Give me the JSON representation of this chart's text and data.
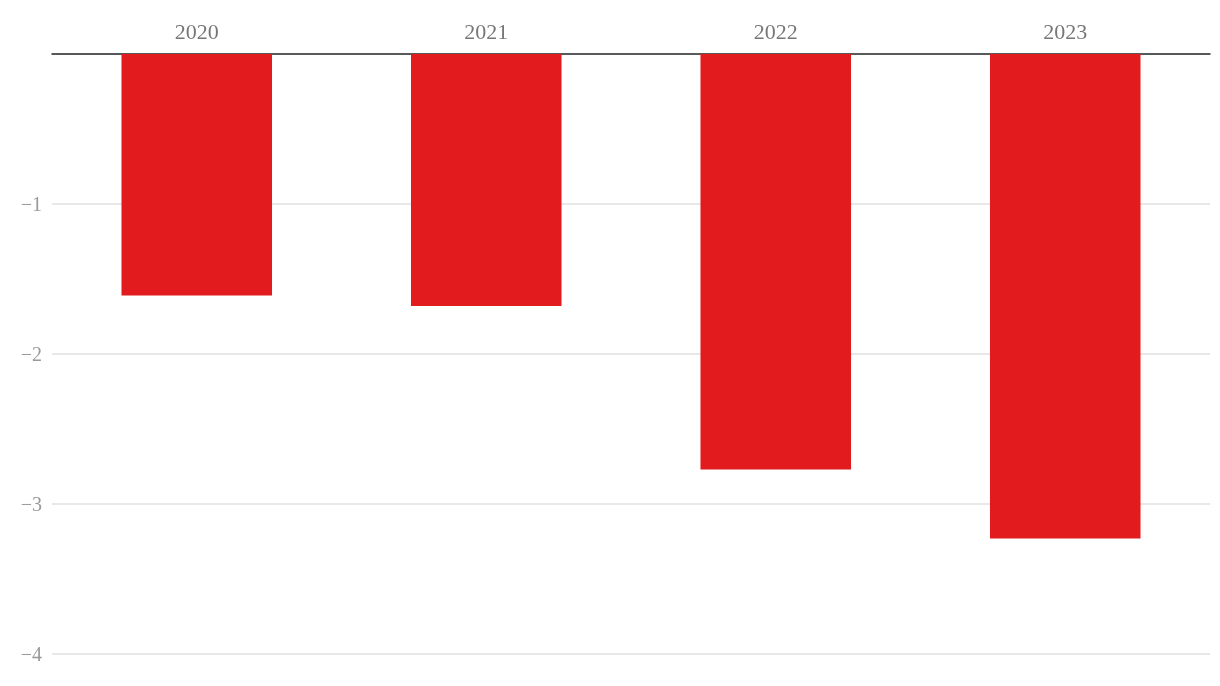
{
  "chart_data": {
    "type": "bar",
    "categories": [
      "2020",
      "2021",
      "2022",
      "2023"
    ],
    "values": [
      -1.61,
      -1.68,
      -2.77,
      -3.23
    ],
    "color": "#e21b1e",
    "ylim": [
      -4,
      0
    ],
    "yticks": [
      {
        "value": -4,
        "label": "−4"
      },
      {
        "value": -3,
        "label": "−3"
      },
      {
        "value": -2,
        "label": "−2"
      },
      {
        "value": -1,
        "label": "−1"
      }
    ],
    "grid": "y"
  }
}
